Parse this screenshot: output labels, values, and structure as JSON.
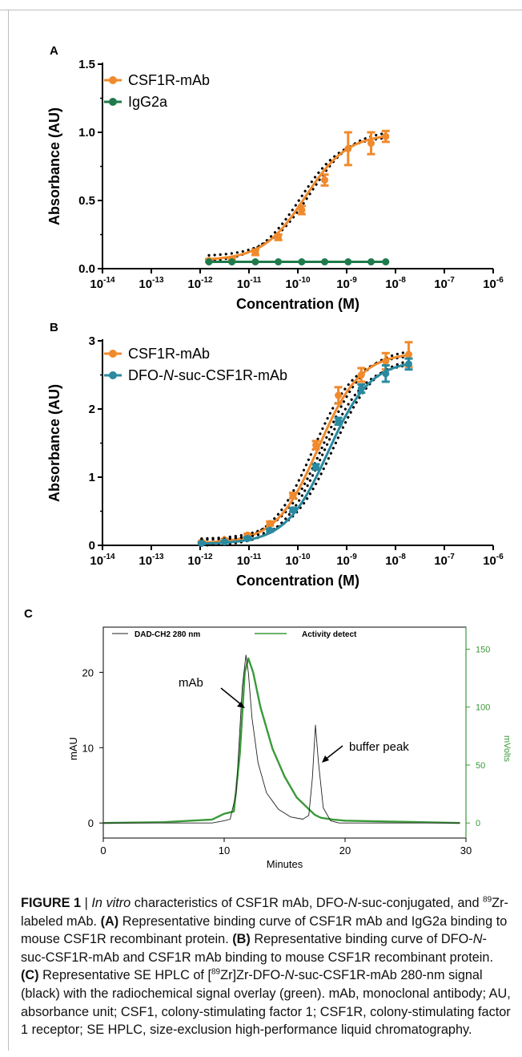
{
  "colors": {
    "orange": "#f08a2c",
    "green": "#1e7a4a",
    "teal": "#2a8aa0",
    "black": "#222222",
    "hplc_green": "#3a9a3a"
  },
  "chart_data": [
    {
      "panel": "A",
      "type": "line",
      "ylabel": "Absorbance (AU)",
      "xlabel": "Concentration (M)",
      "xscale": "log",
      "xlim_exp": [
        -14,
        -6
      ],
      "ylim": [
        0,
        1.5
      ],
      "yticks": [
        "0.0",
        "0.5",
        "1.0",
        "1.5"
      ],
      "ytick_values": [
        0,
        0.5,
        1.0,
        1.5
      ],
      "xtick_base": "10",
      "xtick_exps": [
        "-14",
        "-13",
        "-12",
        "-11",
        "-10",
        "-9",
        "-8",
        "-7",
        "-6"
      ],
      "legend_position": "top-left",
      "series": [
        {
          "name": "CSF1R-mAb",
          "color": "orange",
          "x_exp": [
            -11.82,
            -11.35,
            -10.87,
            -10.4,
            -9.92,
            -9.45,
            -8.97,
            -8.5,
            -8.2
          ],
          "y": [
            0.06,
            0.07,
            0.12,
            0.23,
            0.43,
            0.65,
            0.88,
            0.92,
            0.97
          ],
          "err": [
            0.01,
            0.01,
            0.02,
            0.02,
            0.03,
            0.04,
            0.12,
            0.08,
            0.04
          ],
          "fit": {
            "bottom": 0.06,
            "top": 0.99,
            "logec50": -9.85,
            "hill": 1.0
          },
          "ci": true
        },
        {
          "name": "IgG2a",
          "color": "green",
          "x_exp": [
            -11.82,
            -11.35,
            -10.87,
            -10.4,
            -9.92,
            -9.45,
            -8.97,
            -8.5,
            -8.2
          ],
          "y": [
            0.05,
            0.05,
            0.05,
            0.05,
            0.05,
            0.05,
            0.05,
            0.05,
            0.05
          ],
          "err": [
            0,
            0,
            0,
            0,
            0,
            0,
            0,
            0,
            0
          ],
          "fit": {
            "bottom": 0.05,
            "top": 0.05,
            "logec50": -10,
            "hill": 1.0
          },
          "ci": false
        }
      ]
    },
    {
      "panel": "B",
      "type": "line",
      "ylabel": "Absorbance (AU)",
      "xlabel": "Concentration (M)",
      "xscale": "log",
      "xlim_exp": [
        -14,
        -6
      ],
      "ylim": [
        0,
        3
      ],
      "yticks": [
        "0",
        "1",
        "2",
        "3"
      ],
      "ytick_values": [
        0,
        1,
        2,
        3
      ],
      "xtick_base": "10",
      "xtick_exps": [
        "-14",
        "-13",
        "-12",
        "-11",
        "-10",
        "-9",
        "-8",
        "-7",
        "-6"
      ],
      "legend_position": "top-left",
      "series": [
        {
          "name": "CSF1R-mAb",
          "color": "orange",
          "x_exp": [
            -11.97,
            -11.5,
            -11.03,
            -10.57,
            -10.1,
            -9.63,
            -9.17,
            -8.7,
            -8.2,
            -7.73
          ],
          "y": [
            0.05,
            0.08,
            0.15,
            0.32,
            0.73,
            1.47,
            2.2,
            2.5,
            2.7,
            2.8
          ],
          "err": [
            0.01,
            0.01,
            0.02,
            0.03,
            0.04,
            0.06,
            0.12,
            0.1,
            0.12,
            0.18
          ],
          "fit": {
            "bottom": 0.03,
            "top": 2.83,
            "logec50": -9.58,
            "hill": 1.0
          },
          "ci": true
        },
        {
          "name": "DFO-N-suc-CSF1R-mAb",
          "color": "teal",
          "x_exp": [
            -11.97,
            -11.5,
            -11.03,
            -10.57,
            -10.1,
            -9.63,
            -9.17,
            -8.7,
            -8.2,
            -7.73
          ],
          "y": [
            0.03,
            0.05,
            0.1,
            0.22,
            0.52,
            1.15,
            1.82,
            2.3,
            2.52,
            2.66
          ],
          "err": [
            0.01,
            0.01,
            0.02,
            0.02,
            0.03,
            0.04,
            0.05,
            0.06,
            0.12,
            0.08
          ],
          "fit": {
            "bottom": 0.02,
            "top": 2.72,
            "logec50": -9.38,
            "hill": 1.0
          },
          "ci": true
        }
      ]
    },
    {
      "panel": "C",
      "type": "line",
      "ylabel": "mAU",
      "y2label": "mVolts",
      "xlabel": "Minutes",
      "xlim": [
        0,
        30
      ],
      "ylim": [
        -2,
        26
      ],
      "y2lim": [
        -13,
        169
      ],
      "xticks": [
        "0",
        "10",
        "20",
        "30"
      ],
      "xtick_values": [
        0,
        10,
        20,
        30
      ],
      "yticks": [
        "0",
        "10",
        "20"
      ],
      "ytick_values": [
        0,
        10,
        20
      ],
      "y2ticks": [
        "0",
        "50",
        "100",
        "150"
      ],
      "y2tick_values": [
        0,
        50,
        100,
        150
      ],
      "legend_position": "top",
      "series": [
        {
          "name": "DAD-CH2  280 nm",
          "color": "black",
          "x": [
            0,
            5,
            9,
            10,
            10.5,
            11,
            11.5,
            11.8,
            12.0,
            12.3,
            12.8,
            13.5,
            14.5,
            15.5,
            16.5,
            17.0,
            17.3,
            17.55,
            17.8,
            18.2,
            18.8,
            19.5,
            20,
            25,
            29.5
          ],
          "y": [
            0,
            0,
            0,
            0.3,
            0.5,
            4,
            18,
            22.3,
            20,
            14,
            8,
            4,
            1.8,
            0.8,
            0.5,
            1,
            6,
            13,
            8,
            2,
            0.3,
            0,
            0,
            0,
            0
          ]
        },
        {
          "name": "Activity detect",
          "color": "hplc_green",
          "x": [
            0,
            5,
            9,
            10,
            10.8,
            11.3,
            11.7,
            12.0,
            12.4,
            13,
            14,
            15,
            16,
            17,
            17.5,
            18,
            19,
            20,
            25,
            29.5
          ],
          "y": [
            0,
            0.7,
            3,
            8,
            10,
            60,
            130,
            142,
            130,
            100,
            64,
            40,
            22,
            12,
            7,
            4.5,
            3,
            2,
            1,
            0
          ]
        }
      ],
      "annotations": [
        {
          "text": "mAb",
          "x": 11.9,
          "y": 21.5
        },
        {
          "text": "buffer peak",
          "x": 17.6,
          "y": 10.5
        }
      ]
    }
  ],
  "panels": {
    "a": "A",
    "b": "B",
    "c": "C"
  },
  "caption": {
    "label": "FIGURE 1",
    "sep": " | ",
    "italic": "In vitro",
    "t1": " characteristics of CSF1R mAb, DFO-",
    "N1": "N",
    "t2": "-suc-conjugated, and ",
    "sup89a": "89",
    "t3": "Zr-labeled mAb. ",
    "bA": "(A)",
    "t4": " Representative binding curve of CSF1R mAb and IgG2a binding to mouse CSF1R recombinant protein. ",
    "bB": "(B)",
    "t5": " Representative binding curve of DFO-",
    "N2": "N",
    "t6": "-suc-CSF1R-mAb and CSF1R mAb binding to mouse CSF1R recombinant protein. ",
    "bC": "(C)",
    "t7": " Representative SE HPLC of [",
    "sup89b": "89",
    "t8": "Zr]Zr-DFO-",
    "N3": "N",
    "t9": "-suc-CSF1R-mAb 280-nm signal (black) with the radiochemical signal overlay (green). mAb, monoclonal antibody; AU, absorbance unit; CSF1, colony-stimulating factor 1; CSF1R, colony-stimulating factor 1 receptor; SE HPLC, size-exclusion high-performance liquid chromatography."
  }
}
